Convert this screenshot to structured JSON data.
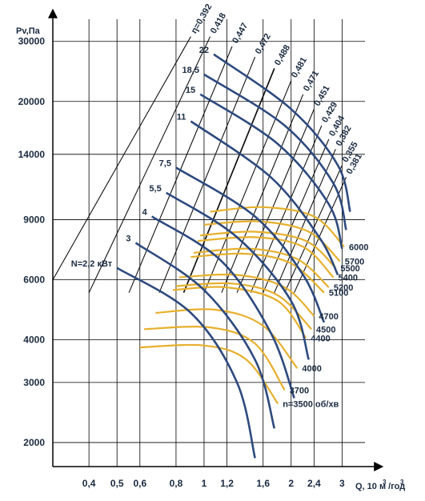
{
  "chart_data": {
    "type": "line",
    "title": "",
    "xlabel": "Q, 10 м /год",
    "xlabel_sup1": "3",
    "xlabel_sup2": "3",
    "ylabel": "Pv,Па",
    "x_scale": "log",
    "y_scale": "log",
    "xlim": [
      0.3,
      3.6
    ],
    "ylim": [
      1700,
      36000
    ],
    "grid": true,
    "colors": {
      "speed": "#e6b02d",
      "power": "#2d4a7e",
      "efficiency": "#111111",
      "axes": "#000000"
    },
    "x_ticks": [
      {
        "value": 0.4,
        "label": "0,4"
      },
      {
        "value": 0.5,
        "label": "0,5"
      },
      {
        "value": 0.6,
        "label": "0,6"
      },
      {
        "value": 0.8,
        "label": "0,8"
      },
      {
        "value": 1.0,
        "label": "1"
      },
      {
        "value": 1.2,
        "label": "1,2"
      },
      {
        "value": 1.6,
        "label": "1,6"
      },
      {
        "value": 2.0,
        "label": "2"
      },
      {
        "value": 2.4,
        "label": "2,4"
      },
      {
        "value": 3.0,
        "label": "3"
      }
    ],
    "y_ticks": [
      {
        "value": 2000,
        "label": "2000"
      },
      {
        "value": 3000,
        "label": "3000"
      },
      {
        "value": 4000,
        "label": "4000"
      },
      {
        "value": 6000,
        "label": "6000"
      },
      {
        "value": 9000,
        "label": "9000"
      },
      {
        "value": 14000,
        "label": "14000"
      },
      {
        "value": 20000,
        "label": "20000"
      },
      {
        "value": 30000,
        "label": "30000"
      }
    ],
    "fan_speed_curves": [
      {
        "label": "n=3500 об/хв",
        "points": [
          [
            0.6,
            3800
          ],
          [
            1.0,
            3850
          ],
          [
            1.4,
            3500
          ],
          [
            1.8,
            2600
          ]
        ]
      },
      {
        "label": "3700",
        "points": [
          [
            0.62,
            4300
          ],
          [
            1.05,
            4350
          ],
          [
            1.5,
            3900
          ],
          [
            1.9,
            2850
          ]
        ]
      },
      {
        "label": "4000",
        "points": [
          [
            0.68,
            4800
          ],
          [
            1.1,
            4900
          ],
          [
            1.6,
            4400
          ],
          [
            2.1,
            3300
          ]
        ]
      },
      {
        "label": "4400",
        "points": [
          [
            0.78,
            5600
          ],
          [
            1.2,
            5700
          ],
          [
            1.8,
            5200
          ],
          [
            2.25,
            4050
          ]
        ]
      },
      {
        "label": "4500",
        "points": [
          [
            0.8,
            5750
          ],
          [
            1.25,
            5850
          ],
          [
            1.8,
            5400
          ],
          [
            2.35,
            4300
          ]
        ]
      },
      {
        "label": "4700",
        "points": [
          [
            0.82,
            6100
          ],
          [
            1.3,
            6200
          ],
          [
            1.9,
            5700
          ],
          [
            2.4,
            4700
          ]
        ]
      },
      {
        "label": "5100",
        "points": [
          [
            0.9,
            7000
          ],
          [
            1.4,
            7150
          ],
          [
            2.0,
            6700
          ],
          [
            2.6,
            5500
          ]
        ]
      },
      {
        "label": "5200",
        "points": [
          [
            0.92,
            7200
          ],
          [
            1.45,
            7400
          ],
          [
            2.1,
            6900
          ],
          [
            2.7,
            5700
          ]
        ]
      },
      {
        "label": "5400",
        "points": [
          [
            0.95,
            7800
          ],
          [
            1.5,
            8000
          ],
          [
            2.2,
            7500
          ],
          [
            2.8,
            6100
          ]
        ]
      },
      {
        "label": "5500",
        "points": [
          [
            0.97,
            8100
          ],
          [
            1.5,
            8300
          ],
          [
            2.25,
            7800
          ],
          [
            2.85,
            6500
          ]
        ]
      },
      {
        "label": "5700",
        "points": [
          [
            1.0,
            8700
          ],
          [
            1.55,
            8900
          ],
          [
            2.3,
            8300
          ],
          [
            2.95,
            6800
          ]
        ]
      },
      {
        "label": "6000",
        "points": [
          [
            1.05,
            9500
          ],
          [
            1.6,
            9800
          ],
          [
            2.4,
            9200
          ],
          [
            3.05,
            7500
          ]
        ]
      }
    ],
    "power_curves": [
      {
        "label": "N=2,2 кВт",
        "points": [
          [
            0.5,
            6500
          ],
          [
            0.9,
            4800
          ],
          [
            1.3,
            3000
          ],
          [
            1.5,
            1800
          ]
        ]
      },
      {
        "label": "3",
        "points": [
          [
            0.58,
            7700
          ],
          [
            1.0,
            5600
          ],
          [
            1.5,
            3500
          ],
          [
            1.75,
            2200
          ]
        ]
      },
      {
        "label": "4",
        "points": [
          [
            0.66,
            9200
          ],
          [
            1.15,
            6800
          ],
          [
            1.7,
            4200
          ],
          [
            2.05,
            2700
          ]
        ]
      },
      {
        "label": "5,5",
        "points": [
          [
            0.74,
            10800
          ],
          [
            1.3,
            8000
          ],
          [
            2.0,
            5200
          ],
          [
            2.3,
            3500
          ]
        ]
      },
      {
        "label": "7,5",
        "points": [
          [
            0.8,
            12800
          ],
          [
            1.5,
            9200
          ],
          [
            2.2,
            6200
          ],
          [
            2.6,
            4500
          ]
        ]
      },
      {
        "label": "11",
        "points": [
          [
            0.9,
            17500
          ],
          [
            1.7,
            12000
          ],
          [
            2.5,
            8000
          ],
          [
            2.9,
            6200
          ]
        ]
      },
      {
        "label": "15",
        "points": [
          [
            0.97,
            21000
          ],
          [
            1.8,
            15000
          ],
          [
            2.7,
            10000
          ],
          [
            3.0,
            7400
          ]
        ]
      },
      {
        "label": "18,5",
        "points": [
          [
            1.0,
            24000
          ],
          [
            1.9,
            17000
          ],
          [
            2.8,
            11500
          ],
          [
            3.1,
            8400
          ]
        ]
      },
      {
        "label": "22",
        "points": [
          [
            1.08,
            27500
          ],
          [
            2.0,
            19000
          ],
          [
            2.9,
            13000
          ],
          [
            3.2,
            9500
          ]
        ]
      }
    ],
    "efficiency_lines": [
      {
        "label": "η=0,392",
        "points": [
          [
            0.3,
            6000
          ],
          [
            0.9,
            31000
          ]
        ]
      },
      {
        "label": "0,418",
        "points": [
          [
            0.4,
            5500
          ],
          [
            1.05,
            31000
          ]
        ]
      },
      {
        "label": "0,447",
        "points": [
          [
            0.55,
            5500
          ],
          [
            1.25,
            29000
          ]
        ]
      },
      {
        "label": "0,472",
        "points": [
          [
            0.7,
            5500
          ],
          [
            1.5,
            27000
          ]
        ]
      },
      {
        "label": "0,488",
        "points": [
          [
            0.85,
            5500
          ],
          [
            1.75,
            25000
          ]
        ]
      },
      {
        "label": "0,481",
        "points": [
          [
            1.0,
            5500
          ],
          [
            2.0,
            23000
          ]
        ]
      },
      {
        "label": "0,471",
        "points": [
          [
            1.15,
            5500
          ],
          [
            2.2,
            21000
          ]
        ]
      },
      {
        "label": "0,451",
        "points": [
          [
            1.3,
            5500
          ],
          [
            2.4,
            19000
          ]
        ]
      },
      {
        "label": "0,429",
        "points": [
          [
            1.45,
            5500
          ],
          [
            2.55,
            17000
          ]
        ]
      },
      {
        "label": "0,404",
        "points": [
          [
            1.6,
            5500
          ],
          [
            2.7,
            15500
          ]
        ]
      },
      {
        "label": "0,382",
        "points": [
          [
            1.75,
            5500
          ],
          [
            2.85,
            14500
          ]
        ]
      },
      {
        "label": "0,355",
        "points": [
          [
            1.9,
            5500
          ],
          [
            3.0,
            13000
          ]
        ]
      },
      {
        "label": "0,381",
        "points": [
          [
            2.05,
            5500
          ],
          [
            3.1,
            12000
          ]
        ]
      }
    ]
  }
}
